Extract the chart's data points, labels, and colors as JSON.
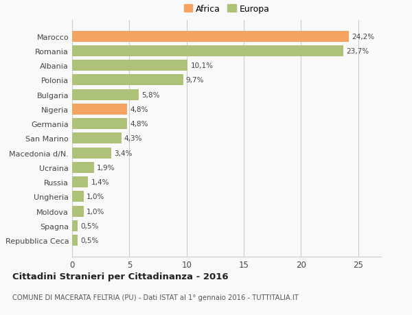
{
  "categories": [
    "Repubblica Ceca",
    "Spagna",
    "Moldova",
    "Ungheria",
    "Russia",
    "Ucraina",
    "Macedonia d/N.",
    "San Marino",
    "Germania",
    "Nigeria",
    "Bulgaria",
    "Polonia",
    "Albania",
    "Romania",
    "Marocco"
  ],
  "values": [
    0.5,
    0.5,
    1.0,
    1.0,
    1.4,
    1.9,
    3.4,
    4.3,
    4.8,
    4.8,
    5.8,
    9.7,
    10.1,
    23.7,
    24.2
  ],
  "colors": [
    "#adc178",
    "#adc178",
    "#adc178",
    "#adc178",
    "#adc178",
    "#adc178",
    "#adc178",
    "#adc178",
    "#adc178",
    "#f4a460",
    "#adc178",
    "#adc178",
    "#adc178",
    "#adc178",
    "#f4a460"
  ],
  "labels": [
    "0,5%",
    "0,5%",
    "1,0%",
    "1,0%",
    "1,4%",
    "1,9%",
    "3,4%",
    "4,3%",
    "4,8%",
    "4,8%",
    "5,8%",
    "9,7%",
    "10,1%",
    "23,7%",
    "24,2%"
  ],
  "africa_color": "#f4a460",
  "europa_color": "#adc178",
  "bg_color": "#f9f9f9",
  "title": "Cittadini Stranieri per Cittadinanza - 2016",
  "subtitle": "COMUNE DI MACERATA FELTRIA (PU) - Dati ISTAT al 1° gennaio 2016 - TUTTITALIA.IT",
  "xlim": [
    0,
    27
  ],
  "xticks": [
    0,
    5,
    10,
    15,
    20,
    25
  ],
  "legend_africa": "Africa",
  "legend_europa": "Europa",
  "bar_height": 0.75
}
